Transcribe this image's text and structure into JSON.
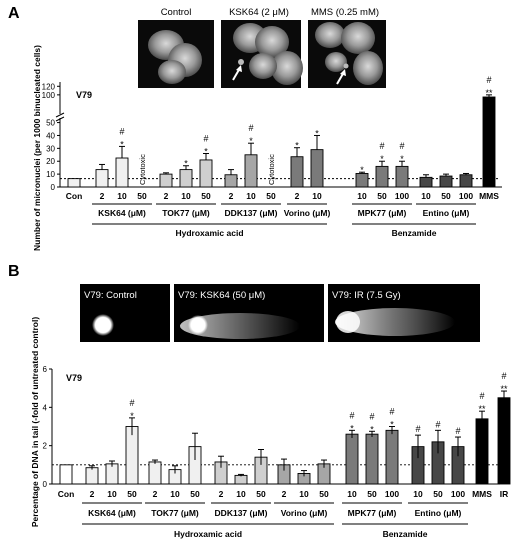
{
  "panels": {
    "A": {
      "letter": "A"
    },
    "B": {
      "letter": "B"
    }
  },
  "colors": {
    "light": "#f0f0f0",
    "mid1": "#cfcfcf",
    "mid2": "#a6a6a6",
    "dark1": "#7a7a7a",
    "dark2": "#474747",
    "black": "#000000"
  },
  "photos_A": [
    "Control",
    "KSK64 (2 μM)",
    "MMS (0.25 mM)"
  ],
  "photos_B": [
    "V79: Control",
    "V79: KSK64 (50 μM)",
    "V79: IR (7.5 Gy)"
  ],
  "chart_data": [
    {
      "type": "bar",
      "panel": "A",
      "cell_line": "V79",
      "ylabel": "Number of micronuclei (per 1000 binucleated cells)",
      "yaxis": {
        "lower_ticks": [
          0,
          10,
          20,
          30,
          40,
          50
        ],
        "upper_ticks": [
          100,
          120
        ],
        "broken": true,
        "upper_range": [
          60,
          130
        ],
        "lower_range": [
          0,
          52
        ]
      },
      "control_reference_line": 6.5,
      "categories": [
        "Con",
        "2",
        "10",
        "50",
        "2",
        "10",
        "50",
        "2",
        "10",
        "50",
        "2",
        "10",
        "10",
        "50",
        "100",
        "10",
        "50",
        "100",
        "MMS"
      ],
      "values": [
        6.5,
        13.5,
        22.5,
        null,
        10,
        13.5,
        21,
        9.5,
        25,
        null,
        23.5,
        29,
        10.5,
        16,
        16,
        7.5,
        8.5,
        9.5,
        95
      ],
      "errors": [
        0,
        4,
        9,
        null,
        1,
        3,
        5,
        4,
        9,
        null,
        7,
        11,
        1,
        4,
        4,
        2,
        1.5,
        1,
        5
      ],
      "fill": [
        "light",
        "light",
        "light",
        "light",
        "mid1",
        "mid1",
        "mid1",
        "mid2",
        "mid2",
        "mid2",
        "dark1",
        "dark1",
        "dark1",
        "dark1",
        "dark1",
        "dark2",
        "dark2",
        "dark2",
        "black"
      ],
      "annotations": [
        "",
        "",
        "#\n*",
        "Cytotoxic",
        "",
        "*",
        "#\n*",
        "",
        "#\n*",
        "Cytotoxic",
        "*",
        "*",
        "*",
        "#\n*",
        "#\n*",
        "",
        "",
        "",
        "#\n**"
      ],
      "groups": [
        {
          "label": "KSK64 (μM)",
          "from": 1,
          "to": 3
        },
        {
          "label": "TOK77 (μM)",
          "from": 4,
          "to": 6
        },
        {
          "label": "DDK137 (μM)",
          "from": 7,
          "to": 9
        },
        {
          "label": "Vorino (μM)",
          "from": 10,
          "to": 11
        },
        {
          "label": "MPK77 (μM)",
          "from": 12,
          "to": 14
        },
        {
          "label": "Entino (μM)",
          "from": 15,
          "to": 17
        }
      ],
      "classes": [
        {
          "label": "Hydroxamic acid",
          "from": 1,
          "to": 11
        },
        {
          "label": "Benzamide",
          "from": 12,
          "to": 17
        }
      ]
    },
    {
      "type": "bar",
      "panel": "B",
      "cell_line": "V79",
      "ylabel": "Percentage of DNA in tail (-fold of untreated control)",
      "ylim": [
        0,
        6
      ],
      "yticks": [
        0,
        2,
        4,
        6
      ],
      "control_reference_line": 1,
      "categories": [
        "Con",
        "2",
        "10",
        "50",
        "2",
        "10",
        "50",
        "2",
        "10",
        "50",
        "2",
        "10",
        "50",
        "10",
        "50",
        "100",
        "10",
        "50",
        "100",
        "MMS",
        "IR"
      ],
      "values": [
        1.0,
        0.85,
        1.05,
        3.0,
        1.15,
        0.75,
        1.95,
        1.15,
        0.45,
        1.4,
        1.0,
        0.55,
        1.05,
        2.6,
        2.6,
        2.8,
        1.95,
        2.2,
        1.95,
        3.4,
        4.5
      ],
      "errors": [
        0,
        0.1,
        0.15,
        0.45,
        0.1,
        0.2,
        0.7,
        0.3,
        0.05,
        0.4,
        0.3,
        0.15,
        0.2,
        0.2,
        0.15,
        0.2,
        0.6,
        0.6,
        0.5,
        0.4,
        0.35
      ],
      "fill": [
        "white",
        "light",
        "light",
        "light",
        "light",
        "light",
        "light",
        "mid1",
        "mid1",
        "mid1",
        "mid2",
        "mid2",
        "mid2",
        "dark1",
        "dark1",
        "dark1",
        "dark2",
        "dark2",
        "dark2",
        "black",
        "black"
      ],
      "annotations": [
        "",
        "",
        "",
        "#\n*",
        "",
        "",
        "",
        "",
        "",
        "",
        "",
        "",
        "",
        "#\n*",
        "#\n*",
        "#\n*",
        "#",
        "#",
        "#",
        "#\n**",
        "#\n**"
      ],
      "groups": [
        {
          "label": "KSK64 (μM)",
          "from": 1,
          "to": 3
        },
        {
          "label": "TOK77 (μM)",
          "from": 4,
          "to": 6
        },
        {
          "label": "DDK137 (μM)",
          "from": 7,
          "to": 9
        },
        {
          "label": "Vorino (μM)",
          "from": 10,
          "to": 12
        },
        {
          "label": "MPK77 (μM)",
          "from": 13,
          "to": 15
        },
        {
          "label": "Entino (μM)",
          "from": 16,
          "to": 18
        }
      ],
      "classes": [
        {
          "label": "Hydroxamic acid",
          "from": 1,
          "to": 12
        },
        {
          "label": "Benzamide",
          "from": 13,
          "to": 18
        }
      ]
    }
  ]
}
